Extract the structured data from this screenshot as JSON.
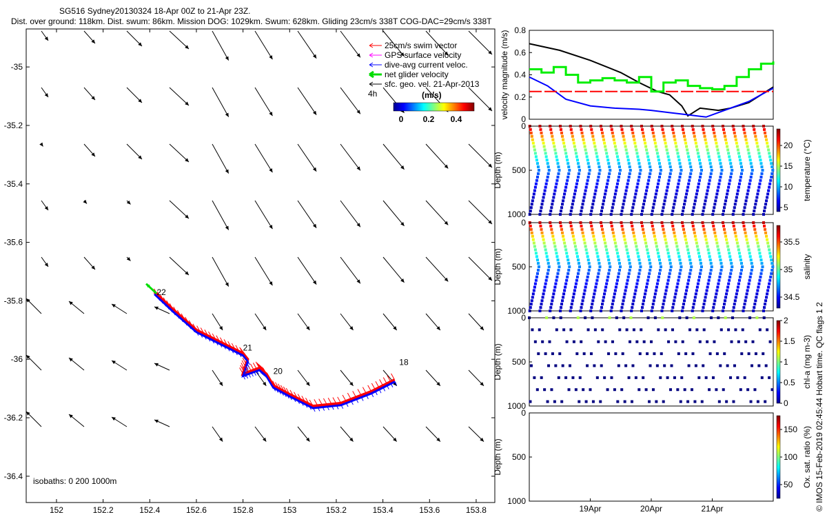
{
  "header": {
    "line1": "SG516 Sydney20130324 18-Apr 00Z to 21-Apr 23Z.",
    "line2": "Dist. over ground: 118km. Dist. swum: 86km. Mission DOG: 1029km. Swum: 628km. Gliding 23cm/s 338T COG-DAC=29cm/s 338T"
  },
  "side_note": "© IMOS 15-Feb-2019 02:45:44 Hobart time. QC flags 1  2",
  "map": {
    "legend": [
      {
        "label": "25cm/s swim vector",
        "color": "#ff0000"
      },
      {
        "label": "GPS surface velocity",
        "color": "#ff00ff"
      },
      {
        "label": "dive-avg current veloc.",
        "color": "#0000ff"
      },
      {
        "label": "net glider velocity",
        "color": "#00dd00"
      },
      {
        "label": "sfc. geo. vel. 21-Apr-2013",
        "color": "#000000"
      }
    ],
    "legend_extra": "4h",
    "colorbar_unit": "(m/s)",
    "colorbar_ticks": [
      "0",
      "0.2",
      "0.4"
    ],
    "isobaths_label": "isobaths: 0   200   1000m",
    "day_labels": [
      {
        "label": "22",
        "lon": 152.43,
        "lat": -35.78
      },
      {
        "label": "21",
        "lon": 152.8,
        "lat": -35.97
      },
      {
        "label": "20",
        "lon": 152.93,
        "lat": -36.05
      },
      {
        "label": "18",
        "lon": 153.47,
        "lat": -36.02
      }
    ]
  },
  "chart_data": [
    {
      "type": "scatter",
      "title": "",
      "xlabel": "",
      "ylabel": "",
      "xlim": [
        151.87,
        153.88
      ],
      "ylim": [
        -36.49,
        -34.87
      ],
      "x_ticks": [
        "152",
        "152.2",
        "152.4",
        "152.6",
        "152.8",
        "153",
        "153.2",
        "153.4",
        "153.6",
        "153.8"
      ],
      "x_tick_values": [
        152,
        152.2,
        152.4,
        152.6,
        152.8,
        153,
        153.2,
        153.4,
        153.6,
        153.8
      ],
      "y_ticks": [
        "-35",
        "-35.2",
        "-35.4",
        "-35.6",
        "-35.8",
        "-36",
        "-36.2",
        "-36.4"
      ],
      "y_tick_values": [
        -35,
        -35.2,
        -35.4,
        -35.6,
        -35.8,
        -36,
        -36.2,
        -36.4
      ],
      "glider_track": [
        [
          153.45,
          -36.07
        ],
        [
          153.35,
          -36.11
        ],
        [
          153.22,
          -36.15
        ],
        [
          153.1,
          -36.16
        ],
        [
          153.0,
          -36.12
        ],
        [
          152.93,
          -36.09
        ],
        [
          152.9,
          -36.05
        ],
        [
          152.87,
          -36.03
        ],
        [
          152.8,
          -36.05
        ],
        [
          152.82,
          -36.0
        ],
        [
          152.8,
          -35.98
        ],
        [
          152.7,
          -35.94
        ],
        [
          152.6,
          -35.9
        ],
        [
          152.5,
          -35.83
        ],
        [
          152.42,
          -35.77
        ]
      ]
    },
    {
      "type": "line",
      "title": "",
      "xlabel": "",
      "ylabel": "velocity magnitude (m/s)",
      "xlim": [
        0,
        4
      ],
      "ylim": [
        0,
        0.8
      ],
      "y_ticks": [
        "0",
        "0.2",
        "0.4",
        "0.6",
        "0.8"
      ],
      "y_tick_values": [
        0,
        0.2,
        0.4,
        0.6,
        0.8
      ],
      "series": [
        {
          "color": "#000000",
          "x": [
            0,
            0.5,
            1,
            1.5,
            1.8,
            2.1,
            2.3,
            2.5,
            2.6,
            2.8,
            3.1,
            3.3,
            3.6,
            3.8,
            4
          ],
          "y": [
            0.68,
            0.62,
            0.53,
            0.42,
            0.33,
            0.25,
            0.22,
            0.12,
            0.03,
            0.1,
            0.08,
            0.1,
            0.15,
            0.22,
            0.29
          ]
        },
        {
          "color": "#0000ff",
          "x": [
            0,
            0.3,
            0.6,
            1,
            1.4,
            1.8,
            2.0,
            2.3,
            2.6,
            2.9,
            3.1,
            3.3,
            3.6,
            3.8,
            4
          ],
          "y": [
            0.38,
            0.3,
            0.18,
            0.12,
            0.1,
            0.09,
            0.08,
            0.06,
            0.04,
            0.02,
            0.06,
            0.1,
            0.16,
            0.22,
            0.28
          ]
        },
        {
          "color": "#ff0000",
          "dash": true,
          "x": [
            0,
            4
          ],
          "y": [
            0.25,
            0.25
          ]
        },
        {
          "color": "#00ee00",
          "step": true,
          "x": [
            0,
            0.2,
            0.4,
            0.6,
            0.8,
            1.0,
            1.2,
            1.4,
            1.6,
            1.8,
            2.0,
            2.2,
            2.4,
            2.6,
            2.8,
            3.0,
            3.2,
            3.4,
            3.6,
            3.8,
            4.0
          ],
          "y": [
            0.45,
            0.42,
            0.47,
            0.4,
            0.33,
            0.35,
            0.37,
            0.35,
            0.33,
            0.38,
            0.25,
            0.33,
            0.35,
            0.3,
            0.28,
            0.27,
            0.3,
            0.38,
            0.45,
            0.5,
            0.52
          ]
        }
      ]
    },
    {
      "type": "scatter",
      "ylabel": "Depth (m)",
      "colorbar_label": "temperature (°C)",
      "colorbar_ticks": [
        "5",
        "10",
        "15",
        "20"
      ],
      "colorbar_tick_values": [
        5,
        10,
        15,
        20
      ],
      "colorbar_range": [
        4,
        24
      ],
      "ylim": [
        1000,
        0
      ],
      "y_ticks": [
        "0",
        "500",
        "1000"
      ],
      "y_tick_values": [
        0,
        500,
        1000
      ],
      "profiles": 24,
      "max_depth": 1000,
      "surface_value": 23,
      "bottom_value": 5
    },
    {
      "type": "scatter",
      "ylabel": "Depth (m)",
      "colorbar_label": "salinity",
      "colorbar_ticks": [
        "34.5",
        "35",
        "35.5"
      ],
      "colorbar_tick_values": [
        34.5,
        35,
        35.5
      ],
      "colorbar_range": [
        34.3,
        35.8
      ],
      "ylim": [
        1000,
        0
      ],
      "y_ticks": [
        "0",
        "500",
        "1000"
      ],
      "y_tick_values": [
        0,
        500,
        1000
      ],
      "profiles": 24,
      "max_depth": 1000,
      "surface_value": 35.7,
      "bottom_value": 34.4
    },
    {
      "type": "scatter",
      "ylabel": "Depth (m)",
      "colorbar_label": "chl-a (mg m-3)",
      "colorbar_ticks": [
        "0",
        "0.5",
        "1",
        "1.5",
        "2"
      ],
      "colorbar_tick_values": [
        0,
        0.5,
        1,
        1.5,
        2
      ],
      "colorbar_range": [
        0,
        2
      ],
      "ylim": [
        1000,
        0
      ],
      "y_ticks": [
        "0",
        "500",
        "1000"
      ],
      "y_tick_values": [
        0,
        500,
        1000
      ],
      "profiles": 24,
      "max_depth": 950,
      "surface_value": 1.1,
      "bottom_value": 0
    },
    {
      "type": "scatter",
      "ylabel": "Depth (m)",
      "colorbar_label": "Ox. sat. ratio (%)",
      "colorbar_ticks": [
        "50",
        "100",
        "150"
      ],
      "colorbar_tick_values": [
        50,
        100,
        150
      ],
      "colorbar_range": [
        25,
        175
      ],
      "ylim": [
        1000,
        0
      ],
      "y_ticks": [
        "0",
        "500",
        "1000"
      ],
      "y_tick_values": [
        0,
        500,
        1000
      ],
      "x_ticks": [
        "19Apr",
        "20Apr",
        "21Apr"
      ],
      "x_tick_values": [
        1,
        2,
        3
      ],
      "xlim": [
        0,
        4
      ]
    }
  ]
}
